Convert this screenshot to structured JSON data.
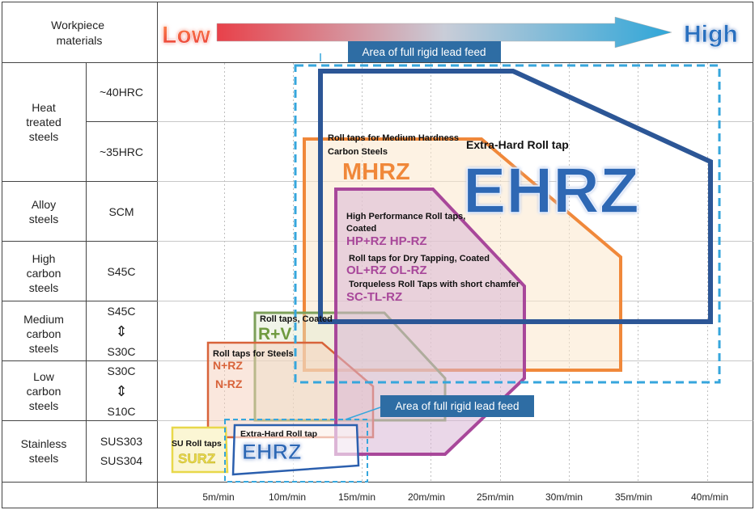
{
  "header": {
    "workpiece_materials": [
      "Workpiece",
      "materials"
    ],
    "low": "Low",
    "high": "High"
  },
  "materials": [
    {
      "group": [
        "Heat",
        "treated",
        "steels"
      ],
      "sub": [
        [
          "~40HRC"
        ],
        [
          "~35HRC"
        ]
      ]
    },
    {
      "group": [
        "Alloy",
        "steels"
      ],
      "sub": [
        [
          "SCM"
        ]
      ]
    },
    {
      "group": [
        "High",
        "carbon",
        "steels"
      ],
      "sub": [
        [
          "S45C"
        ]
      ]
    },
    {
      "group": [
        "Medium",
        "carbon",
        "steels"
      ],
      "sub": [
        [
          "S45C",
          "⇕",
          "S30C"
        ]
      ]
    },
    {
      "group": [
        "Low",
        "carbon",
        "steels"
      ],
      "sub": [
        [
          "S30C",
          "⇕",
          "S10C"
        ]
      ]
    },
    {
      "group": [
        "Stainless",
        "steels"
      ],
      "sub": [
        [
          "SUS303",
          "SUS304"
        ]
      ]
    }
  ],
  "speed_ticks": [
    "5m/min",
    "10m/min",
    "15m/min",
    "20m/min",
    "25m/min",
    "30m/min",
    "35m/min",
    "40m/min"
  ],
  "rigid_feed_labels": [
    "Area of full rigid lead feed",
    "Area of full rigid lead feed"
  ],
  "products": {
    "ehrz_big": {
      "desc": "Extra-Hard Roll tap",
      "name": "EHRZ",
      "color": "#2b5fae"
    },
    "mhrz": {
      "desc": [
        "Roll taps for Medium Hardness",
        "Carbon Steels"
      ],
      "name": "MHRZ",
      "color": "#f0883a"
    },
    "hp": {
      "desc": [
        "High Performance Roll taps,",
        "Coated"
      ],
      "name": "HP+RZ HP-RZ",
      "color": "#a8479a"
    },
    "ol": {
      "desc": "Roll taps for Dry Tapping, Coated",
      "name": "OL+RZ OL-RZ"
    },
    "sc": {
      "desc": "Torqueless Roll Taps with short chamfer",
      "name": "SC-TL-RZ"
    },
    "rv": {
      "desc": "Roll taps, Coated",
      "name": "R+V",
      "color": "#7da05a"
    },
    "nrz": {
      "desc": "Roll taps for Steels",
      "names": [
        "N+RZ",
        "N-RZ"
      ],
      "color": "#d8633a"
    },
    "surz": {
      "desc": "SU Roll taps",
      "name": "SURZ",
      "color": "#e8d84a"
    },
    "ehrz_small": {
      "desc": "Extra-Hard Roll tap",
      "name": "EHRZ",
      "color": "#2b5fae"
    }
  }
}
